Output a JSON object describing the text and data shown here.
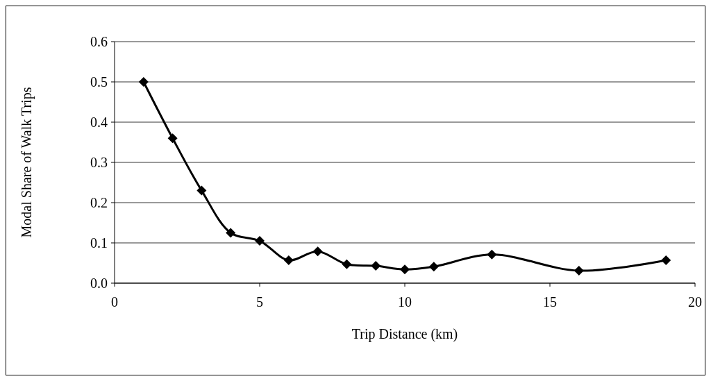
{
  "chart_data": {
    "type": "line",
    "xlabel": "Trip Distance (km)",
    "ylabel": "Modal Share of Walk Trips",
    "x": [
      1,
      2,
      3,
      4,
      5,
      6,
      7,
      8,
      9,
      10,
      11,
      13,
      16,
      19
    ],
    "series": [
      {
        "color": "#000000",
        "values": [
          0.5,
          0.36,
          0.23,
          0.125,
          0.105,
          0.057,
          0.079,
          0.047,
          0.043,
          0.034,
          0.041,
          0.071,
          0.031,
          0.057
        ]
      }
    ],
    "xlim": [
      0,
      20
    ],
    "xticks": [
      0,
      5,
      10,
      15,
      20
    ],
    "ylim": [
      0,
      0.6
    ],
    "yticks": [
      {
        "value": 0,
        "label": "0.0"
      },
      {
        "value": 0.1,
        "label": "0.1"
      },
      {
        "value": 0.2,
        "label": "0.2"
      },
      {
        "value": 0.3,
        "label": "0.3"
      },
      {
        "value": 0.4,
        "label": "0.4"
      },
      {
        "value": 0.5,
        "label": "0.5"
      },
      {
        "value": 0.6,
        "label": "0.6"
      }
    ],
    "grid": "y",
    "marker": "diamond",
    "line_style": "solid"
  }
}
